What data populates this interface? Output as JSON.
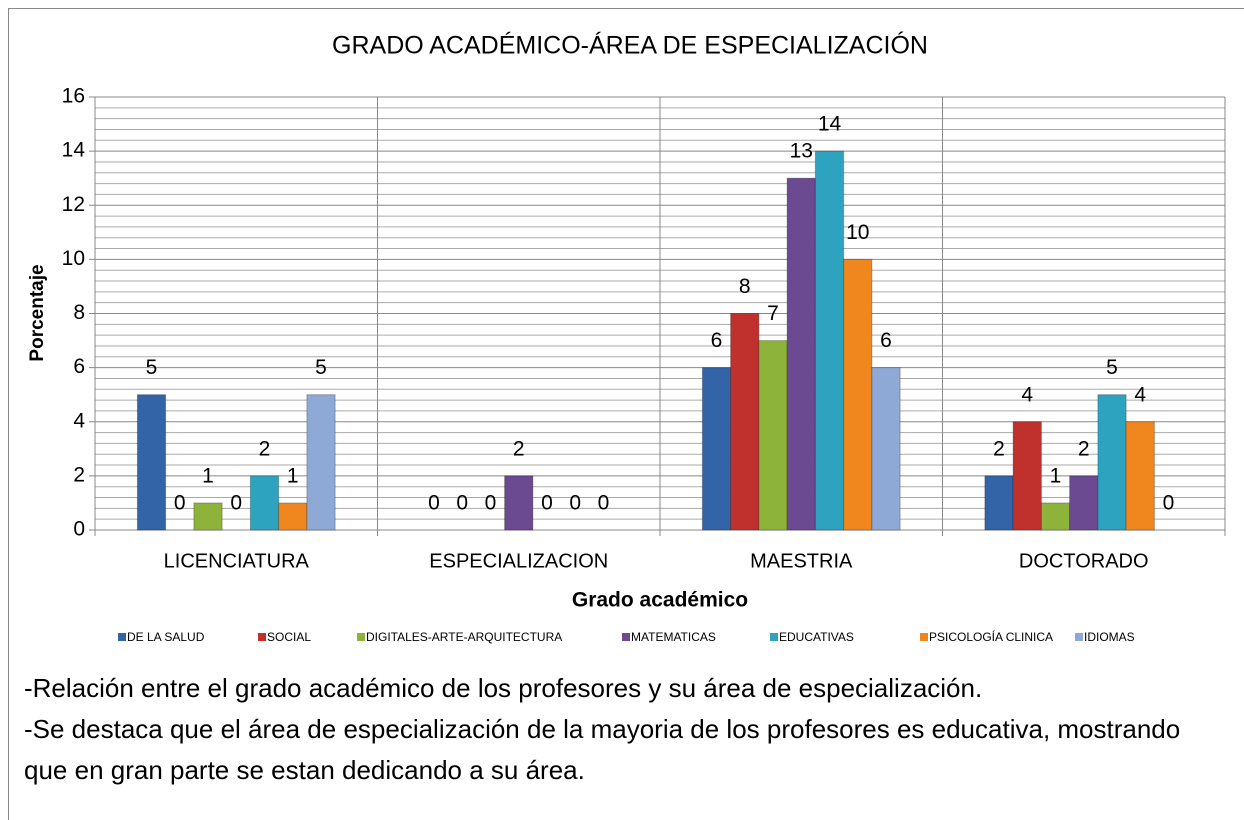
{
  "chart_data": {
    "type": "bar",
    "title": "GRADO ACADÉMICO-ÁREA DE ESPECIALIZACIÓN",
    "x_label": "Grado académico",
    "y_label": "Porcentaje",
    "categories": [
      "LICENCIATURA",
      "ESPECIALIZACION",
      "MAESTRIA",
      "DOCTORADO"
    ],
    "series": [
      {
        "name": "DE LA SALUD",
        "color": "#3464a8",
        "values": [
          5,
          0,
          6,
          2
        ]
      },
      {
        "name": "SOCIAL",
        "color": "#c0312d",
        "values": [
          0,
          0,
          8,
          4
        ]
      },
      {
        "name": "DIGITALES-ARTE-ARQUITECTURA",
        "color": "#8db33a",
        "values": [
          1,
          0,
          7,
          1
        ]
      },
      {
        "name": "MATEMATICAS",
        "color": "#6b4a91",
        "values": [
          0,
          2,
          13,
          2
        ]
      },
      {
        "name": "EDUCATIVAS",
        "color": "#2ea3c0",
        "values": [
          2,
          0,
          14,
          5
        ]
      },
      {
        "name": "PSICOLOGÍA CLINICA",
        "color": "#f0861e",
        "values": [
          1,
          0,
          10,
          4
        ]
      },
      {
        "name": "IDIOMAS",
        "color": "#8ea9d6",
        "values": [
          5,
          0,
          6,
          0
        ]
      }
    ],
    "ylim": [
      0,
      16
    ],
    "yticks": [
      0,
      2,
      4,
      6,
      8,
      10,
      12,
      14,
      16
    ],
    "grid": true,
    "legend": "bottom"
  },
  "notes": [
    "-Relación entre el grado académico de los profesores y su área de especialización.",
    "-Se destaca que el área de especialización de la mayoria de los profesores es educativa, mostrando que en gran parte se estan dedicando a su área."
  ]
}
